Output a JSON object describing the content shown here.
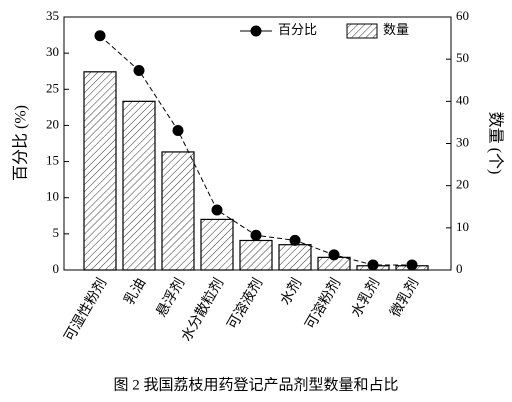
{
  "chart_data": {
    "type": "combo",
    "title": "图 2 我国荔枝用药登记产品剂型数量和占比",
    "ylabel": "百分比 (%)",
    "y2label": "数量 (个)",
    "categories": [
      "可湿性粉剂",
      "乳油",
      "悬浮剂",
      "水分散粒剂",
      "可溶液剂",
      "水剂",
      "可溶粉剂",
      "水乳剂",
      "微乳剂"
    ],
    "series": [
      {
        "name": "百分比",
        "type": "line",
        "color": "#000000",
        "values": [
          32.4,
          27.6,
          19.3,
          8.3,
          4.8,
          4.1,
          2.1,
          0.7,
          0.7
        ]
      },
      {
        "name": "数量",
        "type": "bar",
        "axis": "y2",
        "color": "#000000",
        "values": [
          47,
          40,
          28,
          12,
          7,
          6,
          3,
          1,
          1
        ]
      }
    ],
    "ylim": [
      0,
      35
    ],
    "yticks": [
      0,
      5,
      10,
      15,
      20,
      25,
      30,
      35
    ],
    "y2lim": [
      0,
      60
    ],
    "y2ticks": [
      0,
      10,
      20,
      30,
      40,
      50,
      60
    ],
    "legend": "top"
  }
}
